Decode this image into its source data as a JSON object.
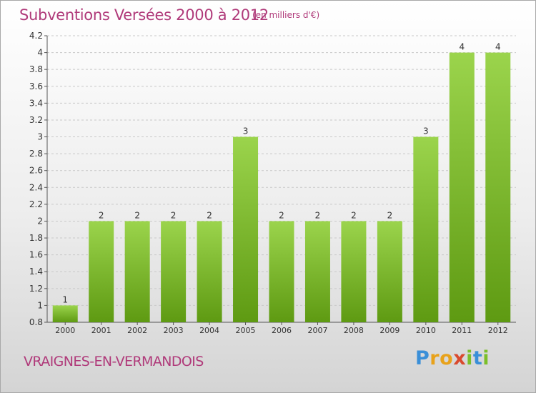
{
  "header": {
    "title": "Subventions Versées 2000 à 2012",
    "unit_note": "(en milliers d'€)"
  },
  "footer": {
    "place": "VRAIGNES-EN-VERMANDOIS",
    "logo_text": "Proxiti"
  },
  "colors": {
    "bar_top": "#9bd44c",
    "bar_bottom": "#5e9a12",
    "title": "#b03a7a"
  },
  "chart_data": {
    "type": "bar",
    "categories": [
      "2000",
      "2001",
      "2002",
      "2003",
      "2004",
      "2005",
      "2006",
      "2007",
      "2008",
      "2009",
      "2010",
      "2011",
      "2012"
    ],
    "values": [
      1,
      2,
      2,
      2,
      2,
      3,
      2,
      2,
      2,
      2,
      3,
      4,
      4
    ],
    "data_labels": [
      "1",
      "2",
      "2",
      "2",
      "2",
      "3",
      "2",
      "2",
      "2",
      "2",
      "3",
      "4",
      "4"
    ],
    "ylim": [
      0.8,
      4.2
    ],
    "yticks": [
      0.8,
      1,
      1.2,
      1.4,
      1.6,
      1.8,
      2,
      2.2,
      2.4,
      2.6,
      2.8,
      3,
      3.2,
      3.4,
      3.6,
      3.8,
      4,
      4.2
    ],
    "ytick_labels": [
      "0.8",
      "1",
      "1.2",
      "1.4",
      "1.6",
      "1.8",
      "2",
      "2.2",
      "2.4",
      "2.6",
      "2.8",
      "3",
      "3.2",
      "3.4",
      "3.6",
      "3.8",
      "4",
      "4.2"
    ],
    "grid": "horizontal dashed",
    "xlabel": "",
    "ylabel": ""
  }
}
